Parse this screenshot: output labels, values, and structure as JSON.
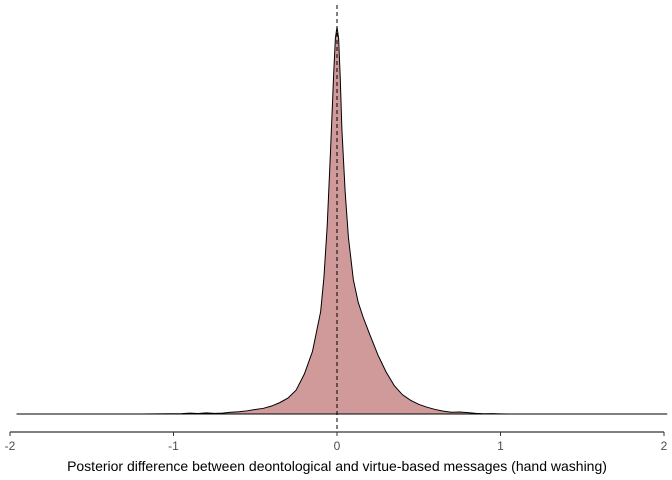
{
  "chart_data": {
    "type": "area",
    "title": "",
    "xlabel": "Posterior difference between deontological and virtue-based messages (hand washing)",
    "ylabel": "",
    "xlim": [
      -2.0,
      2.0
    ],
    "xticks": [
      -2,
      -1,
      0,
      1,
      2
    ],
    "xtick_labels": [
      "-2",
      "-1",
      "0",
      "1",
      "2"
    ],
    "grid": false,
    "legend": "none",
    "reference_line_x": 0,
    "reference_line_style": "dashed",
    "fill_color": "#D09A9A",
    "line_color": "#000000",
    "support": [
      -1.96,
      2.02
    ],
    "series": [
      {
        "x": [
          -1.96,
          -1.2,
          -0.95,
          -0.9,
          -0.85,
          -0.8,
          -0.75,
          -0.7,
          -0.65,
          -0.6,
          -0.55,
          -0.5,
          -0.45,
          -0.4,
          -0.35,
          -0.3,
          -0.25,
          -0.2,
          -0.15,
          -0.1,
          -0.08,
          -0.06,
          -0.04,
          -0.02,
          -0.01,
          0.0,
          0.01,
          0.02,
          0.03,
          0.05,
          0.07,
          0.1,
          0.13,
          0.16,
          0.2,
          0.25,
          0.3,
          0.35,
          0.4,
          0.45,
          0.5,
          0.55,
          0.6,
          0.65,
          0.7,
          0.75,
          0.8,
          0.85,
          0.9,
          0.95,
          1.0,
          1.1,
          1.2,
          2.02
        ],
        "y": [
          0.0,
          0.0,
          0.003,
          0.008,
          0.004,
          0.01,
          0.006,
          0.008,
          0.015,
          0.02,
          0.028,
          0.04,
          0.05,
          0.07,
          0.1,
          0.14,
          0.21,
          0.35,
          0.55,
          0.9,
          1.2,
          1.65,
          2.3,
          3.0,
          3.3,
          3.4,
          3.3,
          2.95,
          2.5,
          1.95,
          1.55,
          1.18,
          0.98,
          0.85,
          0.7,
          0.52,
          0.37,
          0.25,
          0.17,
          0.12,
          0.085,
          0.06,
          0.04,
          0.025,
          0.015,
          0.018,
          0.012,
          0.005,
          0.002,
          0.003,
          0.001,
          0.0,
          0.0,
          0.0
        ]
      }
    ]
  }
}
